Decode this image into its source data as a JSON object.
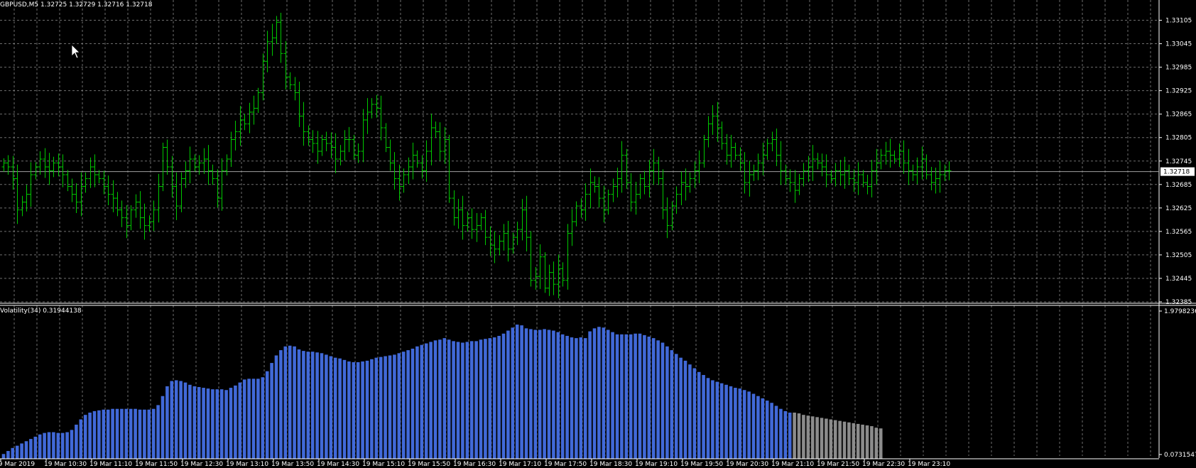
{
  "header": {
    "symbol": "GBPUSD,M5",
    "ohlc": "1.32725 1.32729 1.32716 1.32718"
  },
  "current_price_label": "1.32718",
  "colors": {
    "background": "#000000",
    "grid": "#8a8a8a",
    "bar": "#00c800",
    "volatility": "#4169d8",
    "volatility_projection": "#8c8c8c",
    "price_line": "#a0a0a0",
    "text": "#ffffff"
  },
  "chart_data": [
    {
      "type": "ohlc",
      "title": "GBPUSD,M5",
      "ylim": [
        1.32385,
        1.33135
      ],
      "y_ticks": [
        "1.33105",
        "1.33045",
        "1.32985",
        "1.32925",
        "1.32865",
        "1.32805",
        "1.32745",
        "1.32685",
        "1.32625",
        "1.32565",
        "1.32505",
        "1.32445",
        "1.32385"
      ],
      "current_price": 1.32718,
      "grid": true,
      "close": [
        1.3274,
        1.3273,
        1.327,
        1.3262,
        1.3264,
        1.3266,
        1.3271,
        1.3273,
        1.3275,
        1.3273,
        1.3272,
        1.3274,
        1.3273,
        1.3271,
        1.3268,
        1.3266,
        1.3264,
        1.3268,
        1.327,
        1.3273,
        1.3271,
        1.327,
        1.3268,
        1.3266,
        1.3265,
        1.3262,
        1.326,
        1.3258,
        1.3262,
        1.3264,
        1.326,
        1.3258,
        1.3259,
        1.3262,
        1.3268,
        1.3278,
        1.3273,
        1.3268,
        1.3263,
        1.327,
        1.3272,
        1.3275,
        1.3273,
        1.3274,
        1.3275,
        1.3272,
        1.327,
        1.3265,
        1.3272,
        1.3275,
        1.328,
        1.3282,
        1.3285,
        1.3284,
        1.3287,
        1.3288,
        1.3292,
        1.33,
        1.3305,
        1.3306,
        1.331,
        1.3302,
        1.3296,
        1.3294,
        1.3292,
        1.3286,
        1.3282,
        1.328,
        1.3279,
        1.3277,
        1.328,
        1.3279,
        1.3278,
        1.3275,
        1.3277,
        1.328,
        1.328,
        1.3276,
        1.3277,
        1.3285,
        1.3287,
        1.3289,
        1.3288,
        1.3283,
        1.3278,
        1.3274,
        1.327,
        1.3268,
        1.3271,
        1.3273,
        1.3276,
        1.3274,
        1.3272,
        1.3277,
        1.3283,
        1.3282,
        1.3277,
        1.328,
        1.3265,
        1.326,
        1.3262,
        1.3258,
        1.326,
        1.3257,
        1.3258,
        1.326,
        1.3255,
        1.3253,
        1.3252,
        1.3254,
        1.3256,
        1.3252,
        1.3255,
        1.3257,
        1.3262,
        1.3255,
        1.3244,
        1.3245,
        1.325,
        1.3242,
        1.3246,
        1.3243,
        1.3247,
        1.3244,
        1.3256,
        1.3259,
        1.3263,
        1.3262,
        1.3266,
        1.3269,
        1.3268,
        1.3265,
        1.3262,
        1.3266,
        1.3268,
        1.327,
        1.3276,
        1.3269,
        1.3264,
        1.3266,
        1.327,
        1.3268,
        1.3272,
        1.3274,
        1.327,
        1.3262,
        1.3258,
        1.3263,
        1.3266,
        1.3269,
        1.3268,
        1.327,
        1.3272,
        1.3274,
        1.328,
        1.3284,
        1.3286,
        1.3283,
        1.3279,
        1.3276,
        1.3278,
        1.3276,
        1.3274,
        1.3269,
        1.3271,
        1.3272,
        1.3274,
        1.3276,
        1.3279,
        1.328,
        1.3276,
        1.3272,
        1.327,
        1.3269,
        1.3267,
        1.327,
        1.3272,
        1.3273,
        1.3275,
        1.3274,
        1.3273,
        1.3271,
        1.327,
        1.3272,
        1.3271,
        1.3272,
        1.327,
        1.3269,
        1.3271,
        1.3269,
        1.3268,
        1.3272,
        1.3274,
        1.3276,
        1.3277,
        1.3276,
        1.3275,
        1.3277,
        1.3274,
        1.3272,
        1.3271,
        1.3273,
        1.3275,
        1.3271,
        1.3269,
        1.327,
        1.3271,
        1.3272,
        1.3272
      ]
    },
    {
      "type": "bar",
      "title": "Volatility(34) 0.31944138",
      "ylim": [
        0.0731547,
        1.9798236
      ],
      "y_ticks": [
        "1.9798236",
        "0.0731547"
      ],
      "grid": true,
      "values": [
        0.08,
        0.12,
        0.16,
        0.19,
        0.22,
        0.25,
        0.28,
        0.31,
        0.34,
        0.36,
        0.37,
        0.37,
        0.36,
        0.36,
        0.37,
        0.4,
        0.47,
        0.54,
        0.6,
        0.63,
        0.65,
        0.66,
        0.67,
        0.67,
        0.68,
        0.68,
        0.68,
        0.68,
        0.68,
        0.68,
        0.67,
        0.67,
        0.67,
        0.68,
        0.73,
        0.85,
        0.98,
        1.05,
        1.06,
        1.05,
        1.03,
        1.0,
        0.98,
        0.97,
        0.96,
        0.95,
        0.94,
        0.94,
        0.94,
        0.93,
        0.96,
        0.99,
        1.03,
        1.07,
        1.08,
        1.08,
        1.08,
        1.1,
        1.18,
        1.29,
        1.39,
        1.46,
        1.51,
        1.52,
        1.51,
        1.47,
        1.45,
        1.44,
        1.44,
        1.43,
        1.42,
        1.4,
        1.38,
        1.36,
        1.35,
        1.33,
        1.31,
        1.3,
        1.3,
        1.31,
        1.32,
        1.34,
        1.36,
        1.37,
        1.38,
        1.39,
        1.4,
        1.42,
        1.44,
        1.46,
        1.48,
        1.51,
        1.53,
        1.55,
        1.57,
        1.59,
        1.6,
        1.62,
        1.6,
        1.58,
        1.57,
        1.56,
        1.57,
        1.58,
        1.58,
        1.6,
        1.61,
        1.62,
        1.63,
        1.65,
        1.68,
        1.72,
        1.76,
        1.8,
        1.79,
        1.75,
        1.74,
        1.73,
        1.73,
        1.74,
        1.73,
        1.72,
        1.7,
        1.67,
        1.65,
        1.63,
        1.62,
        1.63,
        1.62,
        1.71,
        1.75,
        1.77,
        1.76,
        1.73,
        1.7,
        1.67,
        1.67,
        1.67,
        1.67,
        1.68,
        1.68,
        1.66,
        1.64,
        1.62,
        1.59,
        1.56,
        1.51,
        1.46,
        1.41,
        1.36,
        1.32,
        1.27,
        1.22,
        1.17,
        1.13,
        1.09,
        1.06,
        1.04,
        1.02,
        1.0,
        0.98,
        0.96,
        0.95,
        0.93,
        0.91,
        0.88,
        0.85,
        0.82,
        0.79,
        0.76,
        0.72,
        0.68,
        0.65,
        0.63
      ],
      "projection_values": [
        0.63,
        0.62,
        0.6,
        0.59,
        0.58,
        0.57,
        0.56,
        0.55,
        0.54,
        0.53,
        0.52,
        0.51,
        0.5,
        0.49,
        0.48,
        0.47,
        0.46,
        0.45,
        0.43,
        0.42
      ],
      "x_ticks": [
        "19 Mar 2019",
        "19 Mar 10:30",
        "19 Mar 11:10",
        "19 Mar 11:50",
        "19 Mar 12:30",
        "19 Mar 13:10",
        "19 Mar 13:50",
        "19 Mar 14:30",
        "19 Mar 15:10",
        "19 Mar 15:50",
        "19 Mar 16:30",
        "19 Mar 17:10",
        "19 Mar 17:50",
        "19 Mar 18:30",
        "19 Mar 19:10",
        "19 Mar 19:50",
        "19 Mar 20:30",
        "19 Mar 21:10",
        "19 Mar 21:50",
        "19 Mar 22:30",
        "19 Mar 23:10"
      ]
    }
  ]
}
